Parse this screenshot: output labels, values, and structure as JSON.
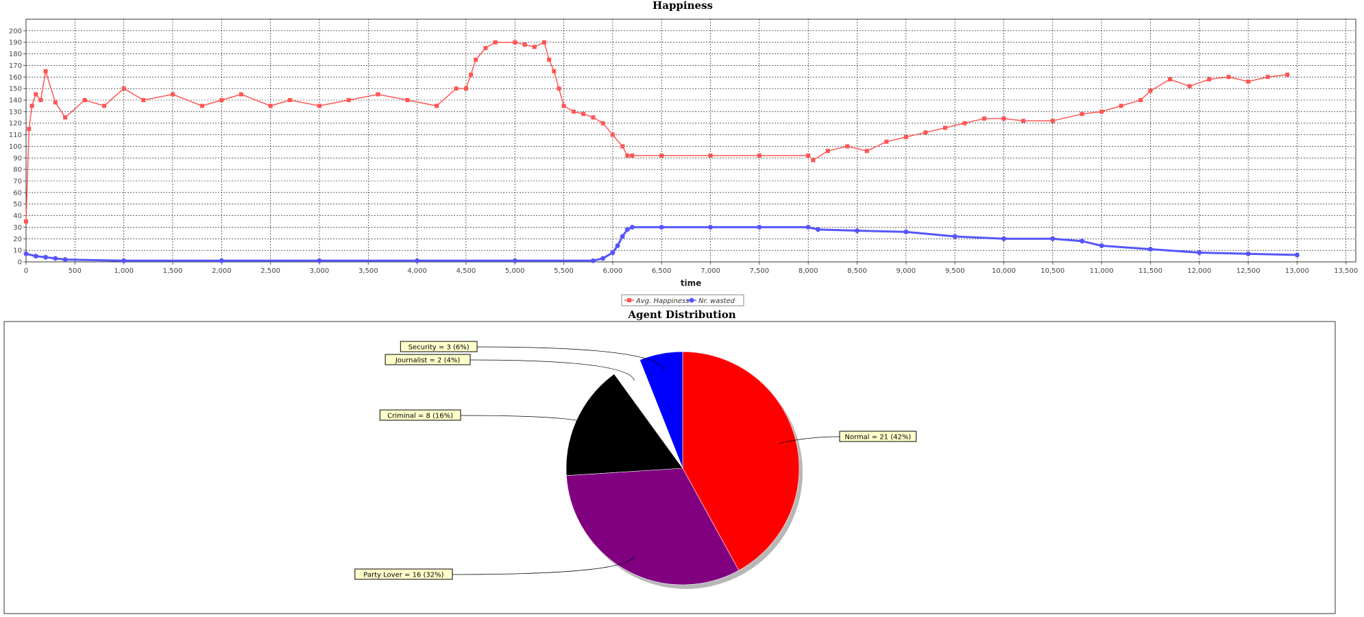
{
  "colors": {
    "avg_happiness": "#ff5555",
    "nr_wasted": "#5555ff",
    "label_bg": "#ffffcc"
  },
  "chart_data": [
    {
      "type": "line",
      "title": "Happiness",
      "xlabel": "time",
      "ylabel": "",
      "xlim": [
        0,
        13600
      ],
      "ylim": [
        0,
        210
      ],
      "xticks": [
        0,
        500,
        1000,
        1500,
        2000,
        2500,
        3000,
        3500,
        4000,
        4500,
        5000,
        5500,
        6000,
        6500,
        7000,
        7500,
        8000,
        8500,
        9000,
        9500,
        10000,
        10500,
        11000,
        11500,
        12000,
        12500,
        13000,
        13500
      ],
      "xtick_labels": [
        "0",
        "500",
        "1,000",
        "1,500",
        "2,000",
        "2,500",
        "3,000",
        "3,500",
        "4,000",
        "4,500",
        "5,000",
        "5,500",
        "6,000",
        "6,500",
        "7,000",
        "7,500",
        "8,000",
        "8,500",
        "9,000",
        "9,500",
        "10,000",
        "10,500",
        "11,000",
        "11,500",
        "12,000",
        "12,500",
        "13,000",
        "13,500"
      ],
      "yticks": [
        0,
        10,
        20,
        30,
        40,
        50,
        60,
        70,
        80,
        90,
        100,
        110,
        120,
        130,
        140,
        150,
        160,
        170,
        180,
        190,
        200
      ],
      "grid": true,
      "legend_position": "bottom-center",
      "series": [
        {
          "name": "Avg. Happiness",
          "x": [
            0,
            30,
            60,
            100,
            150,
            200,
            300,
            400,
            600,
            800,
            1000,
            1200,
            1500,
            1800,
            2000,
            2200,
            2500,
            2700,
            3000,
            3300,
            3600,
            3900,
            4200,
            4400,
            4500,
            4550,
            4600,
            4700,
            4800,
            5000,
            5100,
            5200,
            5300,
            5350,
            5400,
            5450,
            5500,
            5600,
            5700,
            5800,
            5900,
            6000,
            6100,
            6150,
            6200,
            6500,
            7000,
            7500,
            8000,
            8050,
            8200,
            8400,
            8600,
            8800,
            9000,
            9200,
            9400,
            9600,
            9800,
            10000,
            10200,
            10500,
            10800,
            11000,
            11200,
            11400,
            11500,
            11700,
            11900,
            12100,
            12300,
            12500,
            12700,
            12900
          ],
          "y": [
            35,
            115,
            135,
            145,
            140,
            165,
            138,
            125,
            140,
            135,
            150,
            140,
            145,
            135,
            140,
            145,
            135,
            140,
            135,
            140,
            145,
            140,
            135,
            150,
            150,
            162,
            175,
            185,
            190,
            190,
            188,
            186,
            190,
            175,
            165,
            150,
            135,
            130,
            128,
            125,
            120,
            110,
            100,
            92,
            92,
            92,
            92,
            92,
            92,
            88,
            96,
            100,
            96,
            104,
            108,
            112,
            116,
            120,
            124,
            124,
            122,
            122,
            128,
            130,
            135,
            140,
            148,
            158,
            152,
            158,
            160,
            156,
            160,
            162
          ]
        },
        {
          "name": "Nr. wasted",
          "x": [
            0,
            100,
            200,
            300,
            400,
            1000,
            2000,
            3000,
            4000,
            5000,
            5800,
            5900,
            6000,
            6050,
            6100,
            6150,
            6200,
            6500,
            7000,
            7500,
            8000,
            8100,
            8500,
            9000,
            9500,
            10000,
            10500,
            10800,
            11000,
            11500,
            12000,
            12500,
            13000
          ],
          "y": [
            7,
            5,
            4,
            3,
            2,
            1,
            1,
            1,
            1,
            1,
            1,
            3,
            8,
            14,
            22,
            28,
            30,
            30,
            30,
            30,
            30,
            28,
            27,
            26,
            22,
            20,
            20,
            18,
            14,
            11,
            8,
            7,
            6
          ]
        }
      ]
    },
    {
      "type": "pie",
      "title": "Agent Distribution",
      "categories": [
        "Normal",
        "Party Lover",
        "Criminal",
        "Journalist",
        "Security"
      ],
      "values": [
        21,
        16,
        8,
        2,
        3
      ],
      "labels": [
        "Normal = 21 (42%)",
        "Party Lover = 16 (32%)",
        "Criminal = 8 (16%)",
        "Journalist = 2 (4%)",
        "Security = 3 (6%)"
      ],
      "colors": [
        "#ff0000",
        "#800080",
        "#000000",
        "#ffffff",
        "#0000ff"
      ]
    }
  ]
}
